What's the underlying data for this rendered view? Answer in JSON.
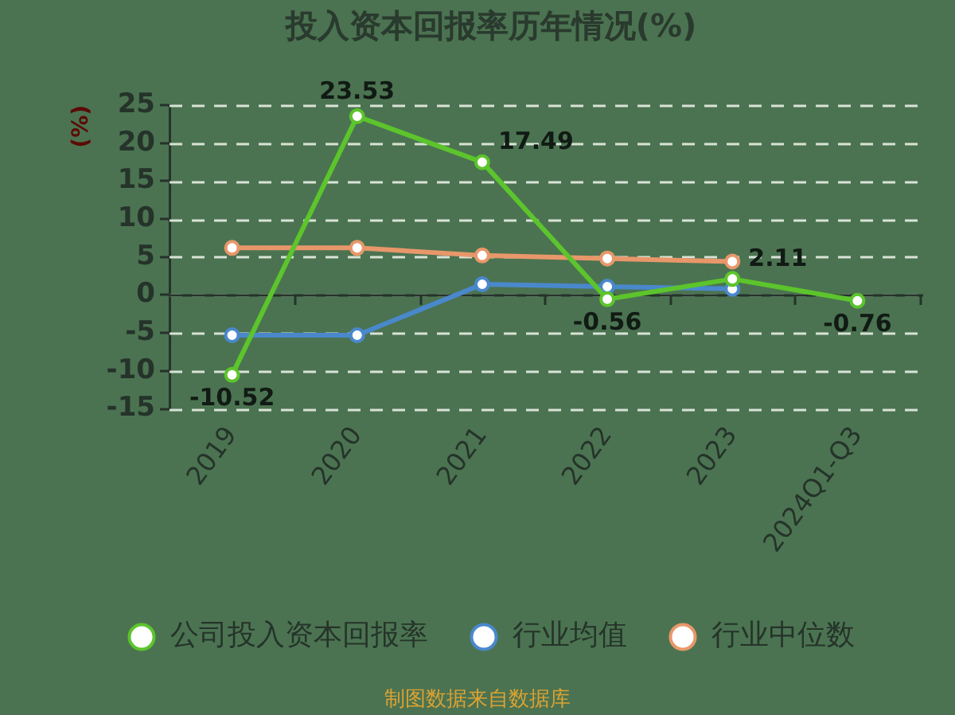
{
  "chart_data": {
    "type": "line",
    "title": "投入资本回报率历年情况(%)",
    "ylabel": "(%)",
    "categories": [
      "2019",
      "2020",
      "2021",
      "2022",
      "2023",
      "2024Q1-Q3"
    ],
    "series": [
      {
        "name": "公司投入资本回报率",
        "color": "#5cc42c",
        "values": [
          -10.52,
          23.53,
          17.49,
          -0.56,
          2.11,
          -0.76
        ],
        "value_labels": [
          "-10.52",
          "23.53",
          "17.49",
          "-0.56",
          "2.11",
          "-0.76"
        ]
      },
      {
        "name": "行业均值",
        "color": "#4a88cc",
        "values": [
          -5.3,
          -5.3,
          1.4,
          1.1,
          0.8,
          null
        ]
      },
      {
        "name": "行业中位数",
        "color": "#e8976a",
        "values": [
          6.2,
          6.2,
          5.2,
          4.8,
          4.4,
          null
        ]
      }
    ],
    "ylim": [
      -15,
      25
    ],
    "yticks": [
      -15,
      -10,
      -5,
      0,
      5,
      10,
      15,
      20,
      25
    ],
    "grid": "y",
    "legend": "bottom",
    "marker": "circle",
    "annotations": [
      "制图数据来自数据库"
    ]
  }
}
